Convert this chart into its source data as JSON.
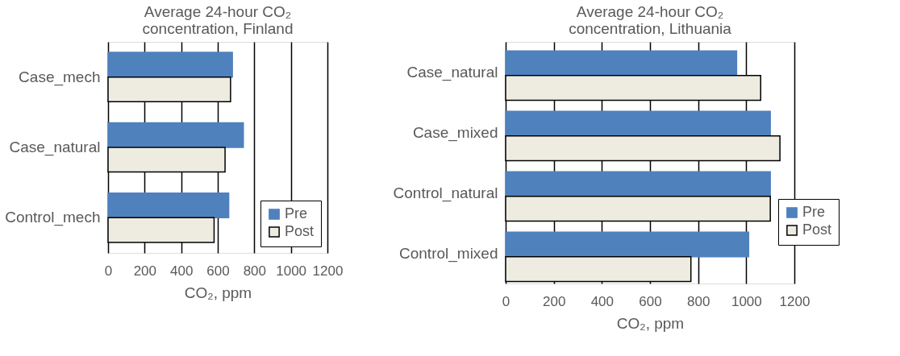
{
  "chart_data": [
    {
      "type": "bar",
      "orientation": "horizontal",
      "title": "Average 24-hour CO₂ concentration, Finland",
      "xlabel": "CO₂, ppm",
      "categories": [
        "Case_mech",
        "Case_natural",
        "Control_mech"
      ],
      "series": [
        {
          "name": "Pre",
          "color": "#4f81bd",
          "values": [
            680,
            740,
            660
          ]
        },
        {
          "name": "Post",
          "color": "#eeece1",
          "values": [
            670,
            640,
            580
          ]
        }
      ],
      "xlim": [
        0,
        1200
      ],
      "xticks": [
        0,
        200,
        400,
        600,
        800,
        1000,
        1200
      ],
      "grid": "x",
      "legend": "bottom right"
    },
    {
      "type": "bar",
      "orientation": "horizontal",
      "title": "Average 24-hour CO₂ concentration, Lithuania",
      "xlabel": "CO₂, ppm",
      "categories": [
        "Case_natural",
        "Case_mixed",
        "Control_natural",
        "Control_mixed"
      ],
      "series": [
        {
          "name": "Pre",
          "color": "#4f81bd",
          "values": [
            960,
            1100,
            1100,
            1010
          ]
        },
        {
          "name": "Post",
          "color": "#eeece1",
          "values": [
            1060,
            1140,
            1100,
            770
          ]
        }
      ],
      "xlim": [
        0,
        1200
      ],
      "xticks": [
        0,
        200,
        400,
        600,
        800,
        1000,
        1200
      ],
      "grid": "x",
      "legend": "bottom right"
    }
  ]
}
